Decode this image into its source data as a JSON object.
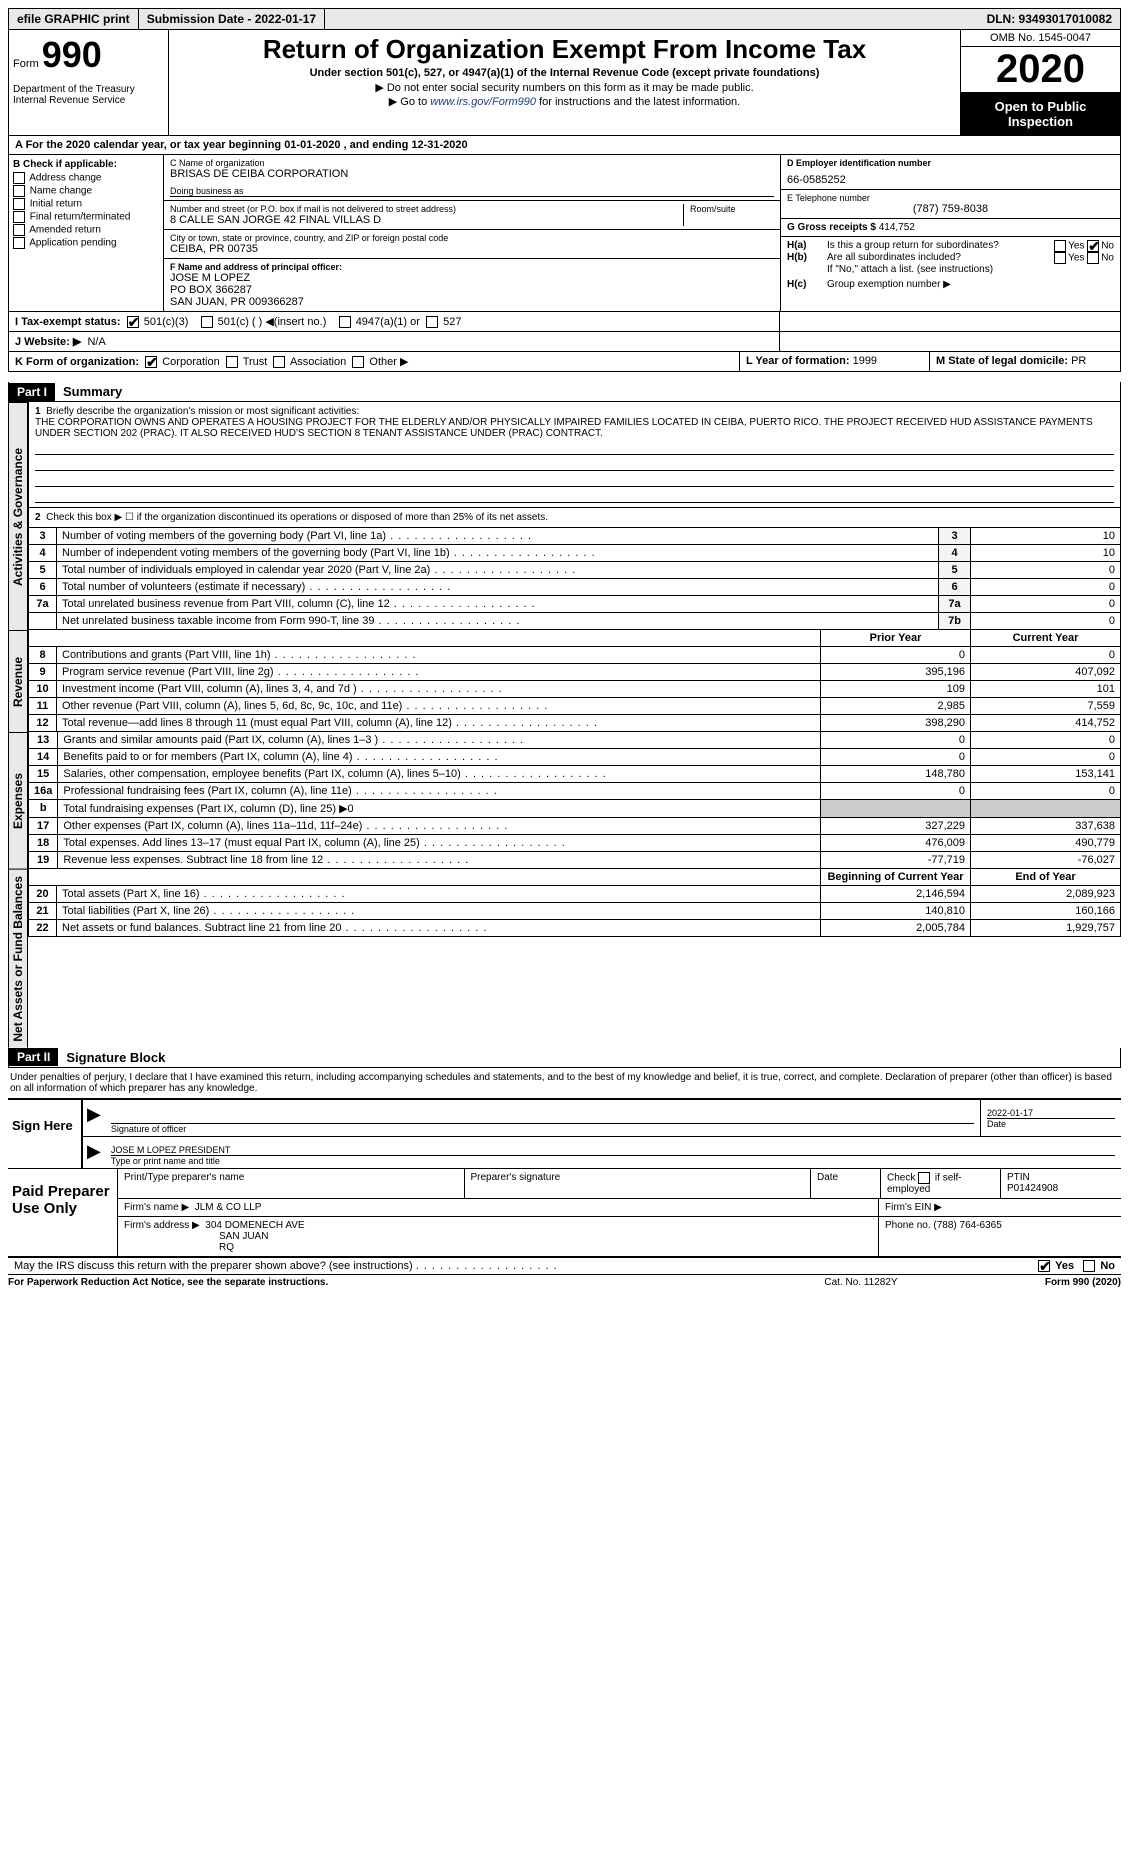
{
  "topbar": {
    "efile": "efile GRAPHIC print",
    "submission": "Submission Date - 2022-01-17",
    "dln": "DLN: 93493017010082"
  },
  "header": {
    "form_label": "Form",
    "form_no": "990",
    "dept": "Department of the Treasury\nInternal Revenue Service",
    "title": "Return of Organization Exempt From Income Tax",
    "subtitle": "Under section 501(c), 527, or 4947(a)(1) of the Internal Revenue Code (except private foundations)",
    "line1": "▶ Do not enter social security numbers on this form as it may be made public.",
    "line2_pre": "▶ Go to ",
    "line2_link": "www.irs.gov/Form990",
    "line2_post": " for instructions and the latest information.",
    "omb": "OMB No. 1545-0047",
    "year": "2020",
    "open": "Open to Public Inspection"
  },
  "row_a": "A For the 2020 calendar year, or tax year beginning 01-01-2020   , and ending 12-31-2020",
  "col_b": {
    "label": "B Check if applicable:",
    "opts": [
      "Address change",
      "Name change",
      "Initial return",
      "Final return/terminated",
      "Amended return",
      "Application pending"
    ]
  },
  "c": {
    "name_lbl": "C Name of organization",
    "name": "BRISAS DE CEIBA CORPORATION",
    "dba_lbl": "Doing business as",
    "dba": "",
    "street_lbl": "Number and street (or P.O. box if mail is not delivered to street address)",
    "street": "8 CALLE SAN JORGE 42 FINAL VILLAS D",
    "room_lbl": "Room/suite",
    "city_lbl": "City or town, state or province, country, and ZIP or foreign postal code",
    "city": "CEIBA, PR  00735"
  },
  "d": {
    "lbl": "D Employer identification number",
    "val": "66-0585252"
  },
  "e": {
    "lbl": "E Telephone number",
    "val": "(787) 759-8038"
  },
  "g": {
    "lbl": "G Gross receipts $",
    "val": "414,752"
  },
  "f": {
    "lbl": "F  Name and address of principal officer:",
    "name": "JOSE M LOPEZ",
    "addr1": "PO BOX 366287",
    "addr2": "SAN JUAN, PR  009366287"
  },
  "h": {
    "a": "Is this a group return for subordinates?",
    "b": "Are all subordinates included?",
    "bnote": "If \"No,\" attach a list. (see instructions)",
    "c": "Group exemption number ▶",
    "yes": "Yes",
    "no": "No"
  },
  "i": {
    "lbl": "I  Tax-exempt status:",
    "o1": "501(c)(3)",
    "o2": "501(c) (  ) ◀(insert no.)",
    "o3": "4947(a)(1) or",
    "o4": "527"
  },
  "j": {
    "lbl": "J  Website: ▶",
    "val": "N/A"
  },
  "k": {
    "lbl": "K Form of organization:",
    "o1": "Corporation",
    "o2": "Trust",
    "o3": "Association",
    "o4": "Other ▶"
  },
  "l": {
    "lbl": "L Year of formation:",
    "val": "1999"
  },
  "m": {
    "lbl": "M State of legal domicile:",
    "val": "PR"
  },
  "parts": {
    "p1": "Part I",
    "p1t": "Summary",
    "p2": "Part II",
    "p2t": "Signature Block"
  },
  "tabs": {
    "gov": "Activities & Governance",
    "rev": "Revenue",
    "exp": "Expenses",
    "net": "Net Assets or Fund Balances"
  },
  "q1": {
    "lbl": "Briefly describe the organization's mission or most significant activities:",
    "text": "THE CORPORATION OWNS AND OPERATES A HOUSING PROJECT FOR THE ELDERLY AND/OR PHYSICALLY IMPAIRED FAMILIES LOCATED IN CEIBA, PUERTO RICO. THE PROJECT RECEIVED HUD ASSISTANCE PAYMENTS UNDER SECTION 202 (PRAC). IT ALSO RECEIVED HUD'S SECTION 8 TENANT ASSISTANCE UNDER (PRAC) CONTRACT."
  },
  "q2": "Check this box ▶ ☐ if the organization discontinued its operations or disposed of more than 25% of its net assets.",
  "gov_rows": [
    {
      "n": "3",
      "d": "Number of voting members of the governing body (Part VI, line 1a)",
      "b": "3",
      "v": "10"
    },
    {
      "n": "4",
      "d": "Number of independent voting members of the governing body (Part VI, line 1b)",
      "b": "4",
      "v": "10"
    },
    {
      "n": "5",
      "d": "Total number of individuals employed in calendar year 2020 (Part V, line 2a)",
      "b": "5",
      "v": "0"
    },
    {
      "n": "6",
      "d": "Total number of volunteers (estimate if necessary)",
      "b": "6",
      "v": "0"
    },
    {
      "n": "7a",
      "d": "Total unrelated business revenue from Part VIII, column (C), line 12",
      "b": "7a",
      "v": "0"
    },
    {
      "n": "",
      "d": "Net unrelated business taxable income from Form 990-T, line 39",
      "b": "7b",
      "v": "0"
    }
  ],
  "hdr_py": "Prior Year",
  "hdr_cy": "Current Year",
  "hdr_by": "Beginning of Current Year",
  "hdr_ey": "End of Year",
  "rev_rows": [
    {
      "n": "8",
      "d": "Contributions and grants (Part VIII, line 1h)",
      "py": "0",
      "cy": "0"
    },
    {
      "n": "9",
      "d": "Program service revenue (Part VIII, line 2g)",
      "py": "395,196",
      "cy": "407,092"
    },
    {
      "n": "10",
      "d": "Investment income (Part VIII, column (A), lines 3, 4, and 7d )",
      "py": "109",
      "cy": "101"
    },
    {
      "n": "11",
      "d": "Other revenue (Part VIII, column (A), lines 5, 6d, 8c, 9c, 10c, and 11e)",
      "py": "2,985",
      "cy": "7,559"
    },
    {
      "n": "12",
      "d": "Total revenue—add lines 8 through 11 (must equal Part VIII, column (A), line 12)",
      "py": "398,290",
      "cy": "414,752"
    }
  ],
  "exp_rows": [
    {
      "n": "13",
      "d": "Grants and similar amounts paid (Part IX, column (A), lines 1–3 )",
      "py": "0",
      "cy": "0"
    },
    {
      "n": "14",
      "d": "Benefits paid to or for members (Part IX, column (A), line 4)",
      "py": "0",
      "cy": "0"
    },
    {
      "n": "15",
      "d": "Salaries, other compensation, employee benefits (Part IX, column (A), lines 5–10)",
      "py": "148,780",
      "cy": "153,141"
    },
    {
      "n": "16a",
      "d": "Professional fundraising fees (Part IX, column (A), line 11e)",
      "py": "0",
      "cy": "0"
    },
    {
      "n": "b",
      "d": "Total fundraising expenses (Part IX, column (D), line 25) ▶0",
      "py": "",
      "cy": "",
      "gray": true
    },
    {
      "n": "17",
      "d": "Other expenses (Part IX, column (A), lines 11a–11d, 11f–24e)",
      "py": "327,229",
      "cy": "337,638"
    },
    {
      "n": "18",
      "d": "Total expenses. Add lines 13–17 (must equal Part IX, column (A), line 25)",
      "py": "476,009",
      "cy": "490,779"
    },
    {
      "n": "19",
      "d": "Revenue less expenses. Subtract line 18 from line 12",
      "py": "-77,719",
      "cy": "-76,027"
    }
  ],
  "net_rows": [
    {
      "n": "20",
      "d": "Total assets (Part X, line 16)",
      "py": "2,146,594",
      "cy": "2,089,923"
    },
    {
      "n": "21",
      "d": "Total liabilities (Part X, line 26)",
      "py": "140,810",
      "cy": "160,166"
    },
    {
      "n": "22",
      "d": "Net assets or fund balances. Subtract line 21 from line 20",
      "py": "2,005,784",
      "cy": "1,929,757"
    }
  ],
  "sig_decl": "Under penalties of perjury, I declare that I have examined this return, including accompanying schedules and statements, and to the best of my knowledge and belief, it is true, correct, and complete. Declaration of preparer (other than officer) is based on all information of which preparer has any knowledge.",
  "sign": {
    "here": "Sign Here",
    "sig_lbl": "Signature of officer",
    "date_lbl": "Date",
    "date": "2022-01-17",
    "name": "JOSE M LOPEZ  PRESIDENT",
    "name_lbl": "Type or print name and title"
  },
  "paid": {
    "title": "Paid Preparer Use Only",
    "h1": "Print/Type preparer's name",
    "h2": "Preparer's signature",
    "h3": "Date",
    "h4_pre": "Check",
    "h4_post": "if self-employed",
    "ptin_lbl": "PTIN",
    "ptin": "P01424908",
    "firm_lbl": "Firm's name    ▶",
    "firm": "JLM & CO LLP",
    "ein_lbl": "Firm's EIN ▶",
    "addr_lbl": "Firm's address ▶",
    "addr1": "304 DOMENECH AVE",
    "addr2": "SAN JUAN\nRQ",
    "phone_lbl": "Phone no.",
    "phone": "(788) 764-6365"
  },
  "discuss": {
    "q": "May the IRS discuss this return with the preparer shown above? (see instructions)",
    "yes": "Yes",
    "no": "No"
  },
  "footer": {
    "l": "For Paperwork Reduction Act Notice, see the separate instructions.",
    "m": "Cat. No. 11282Y",
    "r": "Form 990 (2020)"
  }
}
